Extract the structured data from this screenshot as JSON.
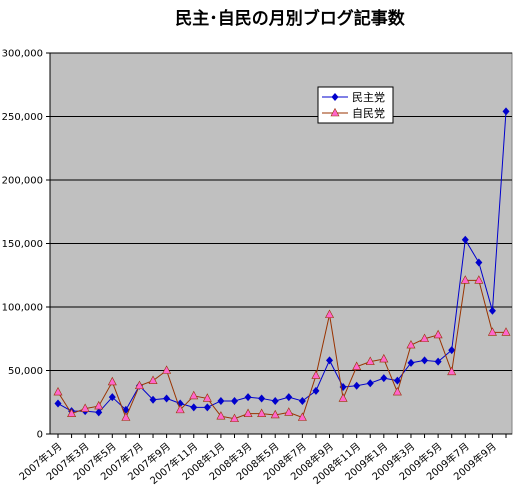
{
  "chart_data": {
    "type": "line",
    "title": "民主･自民の月別ブログ記事数",
    "xlabel": "",
    "ylabel": "",
    "ylim": [
      0,
      300000
    ],
    "yticks": [
      0,
      50000,
      100000,
      150000,
      200000,
      250000,
      300000
    ],
    "ytick_labels": [
      "0",
      "50,000",
      "100,000",
      "150,000",
      "200,000",
      "250,000",
      "300,000"
    ],
    "grid": true,
    "legend_position": "top-right",
    "background_color": "#c0c0c0",
    "x": [
      "2007年1月",
      "2007年2月",
      "2007年3月",
      "2007年4月",
      "2007年5月",
      "2007年6月",
      "2007年7月",
      "2007年8月",
      "2007年9月",
      "2007年10月",
      "2007年11月",
      "2007年12月",
      "2008年1月",
      "2008年2月",
      "2008年3月",
      "2008年4月",
      "2008年5月",
      "2008年6月",
      "2008年7月",
      "2008年8月",
      "2008年9月",
      "2008年10月",
      "2008年11月",
      "2008年12月",
      "2009年1月",
      "2009年2月",
      "2009年3月",
      "2009年4月",
      "2009年5月",
      "2009年6月",
      "2009年7月",
      "2009年8月",
      "2009年9月",
      "2009年10月"
    ],
    "x_tick_labels": [
      "2007年1月",
      "2007年3月",
      "2007年5月",
      "2007年7月",
      "2007年9月",
      "2007年11月",
      "2008年1月",
      "2008年3月",
      "2008年5月",
      "2008年7月",
      "2008年9月",
      "2008年11月",
      "2009年1月",
      "2009年3月",
      "2009年5月",
      "2009年7月",
      "2009年9月"
    ],
    "series": [
      {
        "name": "民主党",
        "color": "#0000cc",
        "marker": "diamond",
        "values": [
          24000,
          18000,
          18000,
          17000,
          29000,
          19000,
          38000,
          27000,
          28000,
          24000,
          21000,
          21000,
          26000,
          26000,
          29000,
          28000,
          26000,
          29000,
          26000,
          34000,
          58000,
          37000,
          38000,
          40000,
          44000,
          42000,
          56000,
          58000,
          57000,
          66000,
          153000,
          135000,
          97000,
          254000
        ]
      },
      {
        "name": "自民党",
        "color": "#993300",
        "marker_color": "#ff66cc",
        "marker": "triangle",
        "values": [
          33000,
          16000,
          20000,
          22000,
          41000,
          13000,
          38000,
          42000,
          50000,
          19000,
          30000,
          28000,
          14000,
          12000,
          16000,
          16000,
          15000,
          17000,
          13000,
          46000,
          94000,
          28000,
          53000,
          57000,
          59000,
          33000,
          70000,
          75000,
          78000,
          49000,
          121000,
          121000,
          80000,
          80000
        ]
      }
    ]
  }
}
